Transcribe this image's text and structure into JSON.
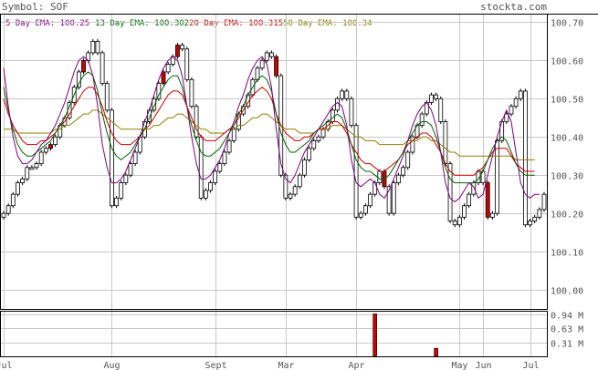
{
  "header": {
    "symbol_label": "Symbol: SOF",
    "site": "stockta.com"
  },
  "colors": {
    "ema5": "#800080",
    "ema13": "#006400",
    "ema20": "#cc0000",
    "ema50": "#8b8000",
    "grid": "#c8c8c8",
    "text": "#555555",
    "candle_down": "#cc0000",
    "volume": "#cc0000"
  },
  "chart_data": {
    "type": "candlestick",
    "legend": [
      {
        "key": "ema5",
        "label": "5 Day EMA: ",
        "value": "100.25"
      },
      {
        "key": "ema13",
        "label": "13 Day EMA: ",
        "value": "100.302"
      },
      {
        "key": "ema20",
        "label": "20 Day EMA: ",
        "value": "100.315"
      },
      {
        "key": "ema50",
        "label": "50 Day EMA: ",
        "value": "100.34"
      }
    ],
    "price_axis": {
      "min": 99.95,
      "max": 100.72,
      "ticks": [
        "100.70",
        "100.60",
        "100.50",
        "100.40",
        "100.30",
        "100.20",
        "100.10",
        "100.00"
      ]
    },
    "x_labels": [
      "Jul",
      "Aug",
      "Sept",
      "Mar",
      "Apr",
      "May",
      "Jun",
      "Jul"
    ],
    "x_label_index": [
      0,
      23,
      45,
      60,
      75,
      97,
      102,
      112
    ],
    "closes": [
      100.2,
      100.22,
      100.25,
      100.28,
      100.29,
      100.32,
      100.32,
      100.33,
      100.36,
      100.37,
      100.38,
      100.4,
      100.43,
      100.45,
      100.49,
      100.53,
      100.57,
      100.6,
      100.62,
      100.65,
      100.62,
      100.54,
      100.47,
      100.22,
      100.24,
      100.28,
      100.3,
      100.33,
      100.36,
      100.4,
      100.44,
      100.47,
      100.5,
      100.54,
      100.57,
      100.59,
      100.61,
      100.64,
      100.63,
      100.55,
      100.48,
      100.4,
      100.24,
      100.26,
      100.28,
      100.31,
      100.33,
      100.36,
      100.39,
      100.42,
      100.46,
      100.48,
      100.51,
      100.55,
      100.58,
      100.6,
      100.62,
      100.61,
      100.56,
      100.3,
      100.24,
      100.25,
      100.27,
      100.3,
      100.34,
      100.37,
      100.39,
      100.4,
      100.42,
      100.44,
      100.47,
      100.5,
      100.52,
      100.5,
      100.43,
      100.19,
      100.2,
      100.22,
      100.25,
      100.28,
      100.31,
      100.27,
      100.2,
      100.28,
      100.3,
      100.32,
      100.36,
      100.4,
      100.43,
      100.46,
      100.49,
      100.51,
      100.5,
      100.44,
      100.33,
      100.18,
      100.17,
      100.19,
      100.22,
      100.25,
      100.28,
      100.31,
      100.28,
      100.19,
      100.2,
      100.39,
      100.44,
      100.46,
      100.48,
      100.5,
      100.52,
      100.17,
      100.18,
      100.19,
      100.21,
      100.25
    ],
    "down_candles": [
      10,
      17,
      34,
      37,
      58,
      81,
      103
    ],
    "ema5": [
      100.58,
      100.48,
      100.4,
      100.35,
      100.33,
      100.33,
      100.34,
      100.36,
      100.38,
      100.39,
      100.41,
      100.43,
      100.46,
      100.49,
      100.53,
      100.57,
      100.6,
      100.61,
      100.6,
      100.56,
      100.48,
      100.38,
      100.32,
      100.28,
      100.28,
      100.29,
      100.31,
      100.34,
      100.37,
      100.4,
      100.44,
      100.47,
      100.51,
      100.55,
      100.58,
      100.6,
      100.61,
      100.6,
      100.56,
      100.48,
      100.4,
      100.33,
      100.29,
      100.29,
      100.3,
      100.32,
      100.34,
      100.37,
      100.41,
      100.44,
      100.48,
      100.51,
      100.55,
      100.58,
      100.6,
      100.61,
      100.59,
      100.53,
      100.42,
      100.33,
      100.29,
      100.28,
      100.3,
      100.33,
      100.36,
      100.38,
      100.4,
      100.42,
      100.44,
      100.46,
      100.48,
      100.49,
      100.48,
      100.43,
      100.34,
      100.28,
      100.27,
      100.28,
      100.29,
      100.28,
      100.25,
      100.24,
      100.26,
      100.29,
      100.32,
      100.35,
      100.39,
      100.43,
      100.46,
      100.48,
      100.49,
      100.47,
      100.43,
      100.36,
      100.28,
      100.24,
      100.23,
      100.24,
      100.26,
      100.28,
      100.27,
      100.24,
      100.25,
      100.3,
      100.35,
      100.4,
      100.44,
      100.47,
      100.44,
      100.36,
      100.28,
      100.25,
      100.24,
      100.25,
      100.25
    ],
    "ema13": [
      100.53,
      100.47,
      100.42,
      100.38,
      100.36,
      100.35,
      100.35,
      100.36,
      100.37,
      100.38,
      100.39,
      100.41,
      100.43,
      100.45,
      100.48,
      100.51,
      100.54,
      100.56,
      100.57,
      100.56,
      100.52,
      100.46,
      100.41,
      100.37,
      100.35,
      100.34,
      100.35,
      100.36,
      100.38,
      100.4,
      100.42,
      100.45,
      100.48,
      100.51,
      100.53,
      100.55,
      100.56,
      100.56,
      100.53,
      100.48,
      100.43,
      100.39,
      100.36,
      100.35,
      100.35,
      100.36,
      100.37,
      100.39,
      100.41,
      100.43,
      100.46,
      100.48,
      100.51,
      100.53,
      100.55,
      100.56,
      100.55,
      100.52,
      100.46,
      100.41,
      100.38,
      100.36,
      100.36,
      100.37,
      100.38,
      100.39,
      100.41,
      100.42,
      100.43,
      100.44,
      100.45,
      100.46,
      100.45,
      100.42,
      100.38,
      100.34,
      100.32,
      100.31,
      100.31,
      100.3,
      100.29,
      100.29,
      100.3,
      100.32,
      100.34,
      100.36,
      100.39,
      100.41,
      100.43,
      100.44,
      100.44,
      100.43,
      100.4,
      100.36,
      100.32,
      100.29,
      100.28,
      100.28,
      100.28,
      100.28,
      100.28,
      100.29,
      100.31,
      100.34,
      100.37,
      100.39,
      100.4,
      100.39,
      100.36,
      100.33,
      100.31,
      100.3,
      100.3,
      100.3
    ],
    "ema20": [
      100.5,
      100.46,
      100.43,
      100.41,
      100.39,
      100.38,
      100.38,
      100.38,
      100.39,
      100.39,
      100.4,
      100.41,
      100.43,
      100.44,
      100.46,
      100.48,
      100.5,
      100.52,
      100.53,
      100.53,
      100.51,
      100.48,
      100.44,
      100.41,
      100.39,
      100.38,
      100.38,
      100.38,
      100.39,
      100.4,
      100.42,
      100.43,
      100.45,
      100.47,
      100.49,
      100.51,
      100.52,
      100.52,
      100.51,
      100.48,
      100.45,
      100.42,
      100.4,
      100.39,
      100.39,
      100.39,
      100.4,
      100.41,
      100.42,
      100.43,
      100.45,
      100.47,
      100.49,
      100.51,
      100.52,
      100.53,
      100.52,
      100.5,
      100.46,
      100.43,
      100.41,
      100.4,
      100.39,
      100.39,
      100.4,
      100.4,
      100.41,
      100.42,
      100.42,
      100.43,
      100.44,
      100.44,
      100.43,
      100.41,
      100.38,
      100.36,
      100.34,
      100.33,
      100.33,
      100.32,
      100.31,
      100.31,
      100.32,
      100.33,
      100.34,
      100.36,
      100.38,
      100.39,
      100.4,
      100.41,
      100.41,
      100.4,
      100.38,
      100.36,
      100.33,
      100.31,
      100.3,
      100.3,
      100.3,
      100.3,
      100.3,
      100.31,
      100.32,
      100.34,
      100.36,
      100.37,
      100.37,
      100.37,
      100.35,
      100.33,
      100.32,
      100.31,
      100.31,
      100.31
    ],
    "ema50": [
      100.42,
      100.42,
      100.42,
      100.41,
      100.41,
      100.41,
      100.41,
      100.41,
      100.41,
      100.41,
      100.41,
      100.42,
      100.42,
      100.43,
      100.43,
      100.44,
      100.45,
      100.46,
      100.46,
      100.47,
      100.47,
      100.46,
      100.45,
      100.44,
      100.43,
      100.42,
      100.42,
      100.42,
      100.42,
      100.42,
      100.42,
      100.42,
      100.43,
      100.43,
      100.44,
      100.45,
      100.45,
      100.46,
      100.46,
      100.45,
      100.44,
      100.43,
      100.42,
      100.42,
      100.41,
      100.41,
      100.41,
      100.41,
      100.42,
      100.42,
      100.43,
      100.43,
      100.44,
      100.45,
      100.45,
      100.46,
      100.46,
      100.45,
      100.44,
      100.43,
      100.42,
      100.42,
      100.42,
      100.41,
      100.41,
      100.41,
      100.41,
      100.42,
      100.42,
      100.42,
      100.43,
      100.43,
      100.43,
      100.42,
      100.41,
      100.4,
      100.4,
      100.39,
      100.39,
      100.39,
      100.38,
      100.38,
      100.38,
      100.38,
      100.38,
      100.38,
      100.39,
      100.39,
      100.39,
      100.4,
      100.4,
      100.39,
      100.39,
      100.38,
      100.37,
      100.36,
      100.36,
      100.35,
      100.35,
      100.35,
      100.35,
      100.35,
      100.35,
      100.35,
      100.35,
      100.35,
      100.35,
      100.35,
      100.35,
      100.34,
      100.34,
      100.34,
      100.34,
      100.34
    ],
    "volume_axis": {
      "max": 1.0,
      "ticks": [
        "0.94 M",
        "0.63 M",
        "0.31 M"
      ],
      "tick_values": [
        0.94,
        0.63,
        0.31
      ]
    },
    "volume_bars": [
      {
        "index": 79,
        "value": 0.95
      },
      {
        "index": 92,
        "value": 0.18
      }
    ]
  }
}
